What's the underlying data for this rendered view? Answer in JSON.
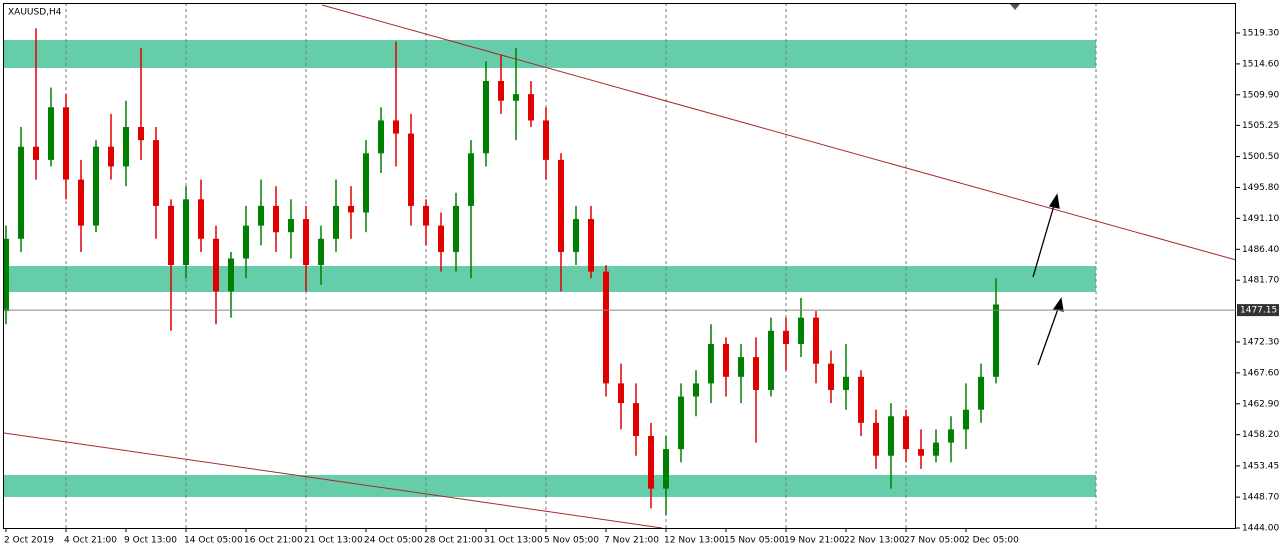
{
  "chart_data": {
    "type": "candlestick",
    "title": "XAUUSD,H4",
    "categories": [
      "2 Oct 2019",
      null,
      null,
      null,
      "4 Oct 21:00",
      null,
      null,
      null,
      "9 Oct 13:00",
      null,
      null,
      null,
      "14 Oct 05:00",
      null,
      null,
      null,
      "16 Oct 21:00",
      null,
      null,
      null,
      "21 Oct 13:00",
      null,
      null,
      null,
      "24 Oct 05:00",
      null,
      null,
      null,
      "28 Oct 21:00",
      null,
      null,
      null,
      "31 Oct 13:00",
      null,
      null,
      null,
      "5 Nov 05:00",
      null,
      null,
      null,
      "7 Nov 21:00",
      null,
      null,
      null,
      "12 Nov 13:00",
      null,
      null,
      null,
      "15 Nov 05:00",
      null,
      null,
      null,
      "19 Nov 21:00",
      null,
      null,
      null,
      "22 Nov 13:00",
      null,
      null,
      null,
      "27 Nov 05:00",
      null,
      null,
      null,
      "2 Dec 05:00",
      null,
      null
    ],
    "open": [
      1477,
      1488,
      1502,
      1500,
      1508,
      1497,
      1490,
      1502,
      1499,
      1505,
      1503,
      1493,
      1484,
      1494,
      1488,
      1480,
      1485,
      1490,
      1493,
      1489,
      1491,
      1484,
      1488,
      1493,
      1492,
      1501,
      1506,
      1504,
      1493,
      1490,
      1486,
      1493,
      1501,
      1512,
      1509,
      1510,
      1506,
      1500,
      1486,
      1491,
      1483,
      1466,
      1463,
      1458,
      1450,
      1456,
      1464,
      1466,
      1472,
      1467,
      1470,
      1465,
      1474,
      1472,
      1476,
      1469,
      1465,
      1467,
      1460,
      1455,
      1461,
      1456,
      1455,
      1457,
      1459,
      1462,
      1467
    ],
    "high": [
      1490,
      1505,
      1520,
      1511,
      1510,
      1500,
      1503,
      1507,
      1509,
      1517,
      1505,
      1494,
      1496,
      1497,
      1490,
      1486,
      1493,
      1497,
      1496,
      1494,
      1493,
      1490,
      1497,
      1496,
      1503,
      1508,
      1518,
      1507,
      1494,
      1492,
      1495,
      1503,
      1515,
      1516,
      1517,
      1512,
      1508,
      1501,
      1493,
      1493,
      1484,
      1469,
      1466,
      1460,
      1458,
      1466,
      1468,
      1475,
      1473,
      1472,
      1473,
      1476,
      1476,
      1479,
      1477,
      1471,
      1472,
      1468,
      1462,
      1463,
      1462,
      1459,
      1459,
      1461,
      1466,
      1469,
      1482
    ],
    "low": [
      1475,
      1486,
      1497,
      1499,
      1494,
      1486,
      1489,
      1497,
      1496,
      1500,
      1488,
      1474,
      1482,
      1486,
      1475,
      1476,
      1482,
      1487,
      1486,
      1485,
      1480,
      1481,
      1486,
      1488,
      1489,
      1498,
      1499,
      1490,
      1487,
      1483,
      1483,
      1482,
      1499,
      1507,
      1503,
      1505,
      1497,
      1480,
      1484,
      1482,
      1464,
      1459,
      1455,
      1447,
      1446,
      1454,
      1461,
      1463,
      1464,
      1463,
      1457,
      1464,
      1468,
      1470,
      1466,
      1463,
      1462,
      1458,
      1453,
      1450,
      1454,
      1453,
      1454,
      1454,
      1456,
      1460,
      1466
    ],
    "close": [
      1488,
      1502,
      1500,
      1508,
      1497,
      1490,
      1502,
      1499,
      1505,
      1503,
      1493,
      1484,
      1494,
      1488,
      1480,
      1485,
      1490,
      1493,
      1489,
      1491,
      1484,
      1488,
      1493,
      1492,
      1501,
      1506,
      1504,
      1493,
      1490,
      1486,
      1493,
      1501,
      1512,
      1509,
      1510,
      1506,
      1500,
      1486,
      1491,
      1483,
      1466,
      1463,
      1458,
      1450,
      1456,
      1464,
      1466,
      1472,
      1467,
      1470,
      1465,
      1474,
      1472,
      1476,
      1469,
      1465,
      1467,
      1460,
      1455,
      1461,
      1456,
      1455,
      1457,
      1459,
      1462,
      1467,
      1478
    ],
    "up_color": "#008000",
    "down_color": "#e00000",
    "ylim": [
      1443.7,
      1524.32
    ],
    "yticks": [
      {
        "value": 1519.3,
        "label": "1519.30"
      },
      {
        "value": 1514.6,
        "label": "1514.60"
      },
      {
        "value": 1509.9,
        "label": "1509.90"
      },
      1505.25,
      {
        "value": 1500.5,
        "label": "1500.50"
      },
      {
        "value": 1495.8,
        "label": "1495.80"
      },
      {
        "value": 1491.1,
        "label": "1491.10"
      },
      {
        "value": 1486.4,
        "label": "1486.40"
      },
      {
        "value": 1481.7,
        "label": "1481.70"
      },
      {
        "value": 1472.3,
        "label": "1472.30"
      },
      {
        "value": 1467.6,
        "label": "1467.60"
      },
      {
        "value": 1462.9,
        "label": "1462.90"
      },
      {
        "value": 1458.2,
        "label": "1458.20"
      },
      1453.45,
      {
        "value": 1448.7,
        "label": "1448.70"
      },
      {
        "value": 1444.0,
        "label": "1444.00"
      }
    ],
    "current_price": 1477.15,
    "period_separators": true
  }
}
